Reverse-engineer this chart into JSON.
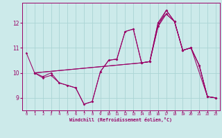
{
  "xlabel": "Windchill (Refroidissement éolien,°C)",
  "background_color": "#cceaea",
  "grid_color": "#aad4d4",
  "line_color": "#990066",
  "xlim": [
    -0.5,
    23.5
  ],
  "ylim": [
    8.5,
    12.8
  ],
  "yticks": [
    9,
    10,
    11,
    12
  ],
  "xticks": [
    0,
    1,
    2,
    3,
    4,
    5,
    6,
    7,
    8,
    9,
    10,
    11,
    12,
    13,
    14,
    15,
    16,
    17,
    18,
    19,
    20,
    21,
    22,
    23
  ],
  "lines": [
    {
      "x": [
        0,
        1,
        2,
        3,
        4,
        5,
        6,
        7,
        8,
        9,
        10,
        11,
        12,
        13,
        14,
        15,
        16,
        17,
        18,
        19,
        20,
        21,
        22,
        23
      ],
      "y": [
        10.8,
        10.0,
        9.8,
        9.9,
        9.6,
        9.5,
        9.4,
        8.75,
        8.85,
        10.05,
        10.5,
        10.55,
        11.65,
        11.75,
        10.4,
        10.45,
        12.0,
        12.5,
        12.05,
        10.9,
        11.0,
        10.3,
        9.05,
        9.0
      ]
    },
    {
      "x": [
        1,
        2,
        3,
        4,
        5,
        6,
        7,
        8,
        9,
        10,
        11,
        12,
        13,
        14,
        15,
        16,
        17,
        18,
        19,
        20,
        21,
        22,
        23
      ],
      "y": [
        10.0,
        9.85,
        10.0,
        9.6,
        9.5,
        9.4,
        8.75,
        8.85,
        10.05,
        10.5,
        10.55,
        11.65,
        11.75,
        10.4,
        10.45,
        12.0,
        12.35,
        12.05,
        10.9,
        11.0,
        10.3,
        9.05,
        9.0
      ]
    },
    {
      "x": [
        1,
        14,
        15,
        16,
        17,
        18,
        19,
        20,
        21,
        22,
        23
      ],
      "y": [
        10.0,
        10.4,
        10.45,
        11.85,
        12.35,
        12.05,
        10.9,
        11.0,
        10.3,
        9.05,
        9.0
      ]
    },
    {
      "x": [
        1,
        14,
        15,
        16,
        17,
        18,
        19,
        20,
        22,
        23
      ],
      "y": [
        10.0,
        10.4,
        10.45,
        11.85,
        12.5,
        12.05,
        10.9,
        11.0,
        9.05,
        9.0
      ]
    }
  ]
}
